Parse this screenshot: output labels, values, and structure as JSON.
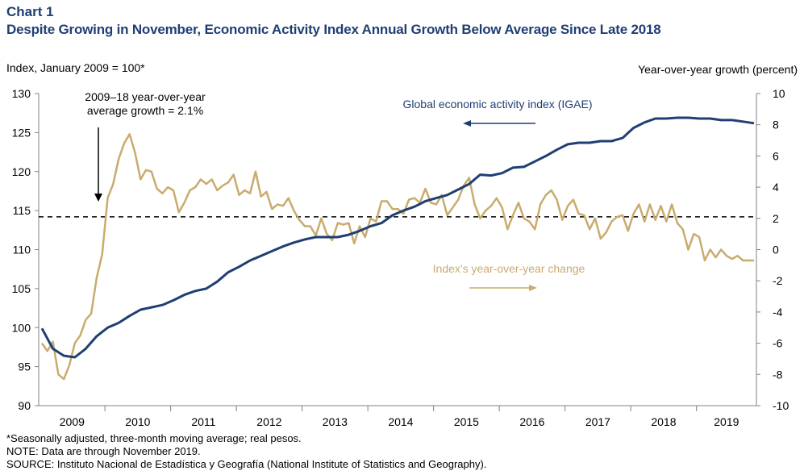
{
  "header": {
    "chart_label": "Chart 1",
    "title": "Despite Growing in November, Economic Activity Index Annual Growth Below Average Since Late 2018"
  },
  "axes": {
    "left_title": "Index, January 2009 = 100*",
    "right_title": "Year-over-year growth (percent)"
  },
  "annotations": {
    "average_line": [
      "2009–18 year-over-year",
      "average growth = 2.1%"
    ],
    "igae_label": "Global economic activity index (IGAE)",
    "yoy_label": "Index's year-over-year change"
  },
  "footnotes": {
    "note1": "*Seasonally adjusted, three-month moving average; real pesos.",
    "note2": "NOTE: Data are through November 2019.",
    "note3": "SOURCE: Instituto Nacional de Estadística y Geografía (National Institute of Statistics and Geography)."
  },
  "colors": {
    "igae": "#1f3f74",
    "yoy": "#c9ab6e",
    "average_line": "#000000",
    "title": "#1f3f74"
  },
  "chart_data": {
    "type": "line",
    "x_categories": [
      "2009",
      "2010",
      "2011",
      "2012",
      "2013",
      "2014",
      "2015",
      "2016",
      "2017",
      "2018",
      "2019"
    ],
    "x_start": "2009-01",
    "x_end": "2019-11",
    "left_ylim": [
      90,
      130
    ],
    "left_ticks": [
      90,
      95,
      100,
      105,
      110,
      115,
      120,
      125,
      130
    ],
    "right_ylim": [
      -10,
      10
    ],
    "right_ticks": [
      -10,
      -8,
      -6,
      -4,
      -2,
      0,
      2,
      4,
      6,
      8,
      10
    ],
    "grid": false,
    "series": [
      {
        "name": "Global economic activity index (IGAE)",
        "axis": "left",
        "points": [
          [
            "2009-01",
            99.9
          ],
          [
            "2009-03",
            97.3
          ],
          [
            "2009-05",
            96.4
          ],
          [
            "2009-07",
            96.2
          ],
          [
            "2009-09",
            97.3
          ],
          [
            "2009-11",
            98.9
          ],
          [
            "2010-01",
            100.0
          ],
          [
            "2010-03",
            100.6
          ],
          [
            "2010-05",
            101.5
          ],
          [
            "2010-07",
            102.3
          ],
          [
            "2010-09",
            102.6
          ],
          [
            "2010-11",
            102.9
          ],
          [
            "2011-01",
            103.5
          ],
          [
            "2011-03",
            104.2
          ],
          [
            "2011-05",
            104.7
          ],
          [
            "2011-07",
            105.0
          ],
          [
            "2011-09",
            105.9
          ],
          [
            "2011-11",
            107.1
          ],
          [
            "2012-01",
            107.8
          ],
          [
            "2012-03",
            108.6
          ],
          [
            "2012-05",
            109.2
          ],
          [
            "2012-07",
            109.8
          ],
          [
            "2012-09",
            110.4
          ],
          [
            "2012-11",
            110.9
          ],
          [
            "2013-01",
            111.3
          ],
          [
            "2013-03",
            111.6
          ],
          [
            "2013-05",
            111.6
          ],
          [
            "2013-07",
            111.6
          ],
          [
            "2013-09",
            111.9
          ],
          [
            "2013-11",
            112.4
          ],
          [
            "2014-01",
            113.0
          ],
          [
            "2014-03",
            113.4
          ],
          [
            "2014-05",
            114.4
          ],
          [
            "2014-07",
            115.0
          ],
          [
            "2014-09",
            115.5
          ],
          [
            "2014-11",
            116.2
          ],
          [
            "2015-01",
            116.6
          ],
          [
            "2015-03",
            117.0
          ],
          [
            "2015-05",
            117.7
          ],
          [
            "2015-07",
            118.4
          ],
          [
            "2015-09",
            119.6
          ],
          [
            "2015-11",
            119.5
          ],
          [
            "2016-01",
            119.8
          ],
          [
            "2016-03",
            120.5
          ],
          [
            "2016-05",
            120.6
          ],
          [
            "2016-07",
            121.3
          ],
          [
            "2016-09",
            122.0
          ],
          [
            "2016-11",
            122.8
          ],
          [
            "2017-01",
            123.5
          ],
          [
            "2017-03",
            123.7
          ],
          [
            "2017-05",
            123.7
          ],
          [
            "2017-07",
            123.9
          ],
          [
            "2017-09",
            123.9
          ],
          [
            "2017-11",
            124.3
          ],
          [
            "2018-01",
            125.6
          ],
          [
            "2018-03",
            126.3
          ],
          [
            "2018-05",
            126.8
          ],
          [
            "2018-07",
            126.8
          ],
          [
            "2018-09",
            126.9
          ],
          [
            "2018-11",
            126.9
          ],
          [
            "2019-01",
            126.8
          ],
          [
            "2019-03",
            126.8
          ],
          [
            "2019-05",
            126.6
          ],
          [
            "2019-07",
            126.6
          ],
          [
            "2019-09",
            126.4
          ],
          [
            "2019-11",
            126.2
          ]
        ]
      },
      {
        "name": "Index's year-over-year change",
        "axis": "right",
        "points": [
          [
            "2009-01",
            -6.0
          ],
          [
            "2009-02",
            -6.5
          ],
          [
            "2009-03",
            -5.9
          ],
          [
            "2009-04",
            -8.0
          ],
          [
            "2009-05",
            -8.3
          ],
          [
            "2009-06",
            -7.4
          ],
          [
            "2009-07",
            -6.0
          ],
          [
            "2009-08",
            -5.5
          ],
          [
            "2009-09",
            -4.5
          ],
          [
            "2009-10",
            -4.1
          ],
          [
            "2009-11",
            -1.8
          ],
          [
            "2009-12",
            -0.3
          ],
          [
            "2010-01",
            3.3
          ],
          [
            "2010-02",
            4.2
          ],
          [
            "2010-03",
            5.8
          ],
          [
            "2010-04",
            6.8
          ],
          [
            "2010-05",
            7.4
          ],
          [
            "2010-06",
            6.2
          ],
          [
            "2010-07",
            4.5
          ],
          [
            "2010-08",
            5.1
          ],
          [
            "2010-09",
            5.0
          ],
          [
            "2010-10",
            3.9
          ],
          [
            "2010-11",
            3.6
          ],
          [
            "2010-12",
            4.0
          ],
          [
            "2011-01",
            3.8
          ],
          [
            "2011-02",
            2.4
          ],
          [
            "2011-03",
            3.0
          ],
          [
            "2011-04",
            3.8
          ],
          [
            "2011-05",
            4.0
          ],
          [
            "2011-06",
            4.5
          ],
          [
            "2011-07",
            4.2
          ],
          [
            "2011-08",
            4.5
          ],
          [
            "2011-09",
            3.8
          ],
          [
            "2011-10",
            4.1
          ],
          [
            "2011-11",
            4.3
          ],
          [
            "2011-12",
            4.8
          ],
          [
            "2012-01",
            3.5
          ],
          [
            "2012-02",
            3.8
          ],
          [
            "2012-03",
            3.6
          ],
          [
            "2012-04",
            5.0
          ],
          [
            "2012-05",
            3.4
          ],
          [
            "2012-06",
            3.7
          ],
          [
            "2012-07",
            2.6
          ],
          [
            "2012-08",
            2.9
          ],
          [
            "2012-09",
            2.8
          ],
          [
            "2012-10",
            3.3
          ],
          [
            "2012-11",
            2.5
          ],
          [
            "2012-12",
            1.9
          ],
          [
            "2013-01",
            1.5
          ],
          [
            "2013-02",
            1.5
          ],
          [
            "2013-03",
            0.9
          ],
          [
            "2013-04",
            2.0
          ],
          [
            "2013-05",
            1.0
          ],
          [
            "2013-06",
            0.6
          ],
          [
            "2013-07",
            1.7
          ],
          [
            "2013-08",
            1.6
          ],
          [
            "2013-09",
            1.7
          ],
          [
            "2013-10",
            0.4
          ],
          [
            "2013-11",
            1.5
          ],
          [
            "2013-12",
            0.8
          ],
          [
            "2014-01",
            2.0
          ],
          [
            "2014-02",
            1.8
          ],
          [
            "2014-03",
            3.1
          ],
          [
            "2014-04",
            3.1
          ],
          [
            "2014-05",
            2.6
          ],
          [
            "2014-06",
            2.6
          ],
          [
            "2014-07",
            2.3
          ],
          [
            "2014-08",
            3.2
          ],
          [
            "2014-09",
            3.3
          ],
          [
            "2014-10",
            3.0
          ],
          [
            "2014-11",
            3.9
          ],
          [
            "2014-12",
            3.0
          ],
          [
            "2015-01",
            2.9
          ],
          [
            "2015-02",
            3.5
          ],
          [
            "2015-03",
            2.2
          ],
          [
            "2015-04",
            2.7
          ],
          [
            "2015-05",
            3.2
          ],
          [
            "2015-06",
            4.1
          ],
          [
            "2015-07",
            4.6
          ],
          [
            "2015-08",
            2.9
          ],
          [
            "2015-09",
            2.0
          ],
          [
            "2015-10",
            2.5
          ],
          [
            "2015-11",
            2.8
          ],
          [
            "2015-12",
            3.3
          ],
          [
            "2016-01",
            2.7
          ],
          [
            "2016-02",
            1.3
          ],
          [
            "2016-03",
            2.2
          ],
          [
            "2016-04",
            3.0
          ],
          [
            "2016-05",
            2.0
          ],
          [
            "2016-06",
            1.8
          ],
          [
            "2016-07",
            1.3
          ],
          [
            "2016-08",
            2.9
          ],
          [
            "2016-09",
            3.5
          ],
          [
            "2016-10",
            3.8
          ],
          [
            "2016-11",
            3.2
          ],
          [
            "2016-12",
            1.9
          ],
          [
            "2017-01",
            2.8
          ],
          [
            "2017-02",
            3.2
          ],
          [
            "2017-03",
            2.3
          ],
          [
            "2017-04",
            2.2
          ],
          [
            "2017-05",
            1.3
          ],
          [
            "2017-06",
            2.0
          ],
          [
            "2017-07",
            0.7
          ],
          [
            "2017-08",
            1.1
          ],
          [
            "2017-09",
            1.8
          ],
          [
            "2017-10",
            2.1
          ],
          [
            "2017-11",
            2.2
          ],
          [
            "2017-12",
            1.2
          ],
          [
            "2018-01",
            2.3
          ],
          [
            "2018-02",
            2.9
          ],
          [
            "2018-03",
            1.8
          ],
          [
            "2018-04",
            2.9
          ],
          [
            "2018-05",
            1.9
          ],
          [
            "2018-06",
            2.8
          ],
          [
            "2018-07",
            1.8
          ],
          [
            "2018-08",
            2.9
          ],
          [
            "2018-09",
            1.7
          ],
          [
            "2018-10",
            1.3
          ],
          [
            "2018-11",
            0.0
          ],
          [
            "2018-12",
            1.0
          ],
          [
            "2019-01",
            0.8
          ],
          [
            "2019-02",
            -0.7
          ],
          [
            "2019-03",
            0.0
          ],
          [
            "2019-04",
            -0.5
          ],
          [
            "2019-05",
            0.0
          ],
          [
            "2019-06",
            -0.4
          ],
          [
            "2019-07",
            -0.6
          ],
          [
            "2019-08",
            -0.4
          ],
          [
            "2019-09",
            -0.7
          ],
          [
            "2019-10",
            -0.7
          ],
          [
            "2019-11",
            -0.7
          ]
        ]
      }
    ],
    "reference_lines": [
      {
        "axis": "right",
        "value": 2.1,
        "style": "dashed"
      }
    ]
  }
}
